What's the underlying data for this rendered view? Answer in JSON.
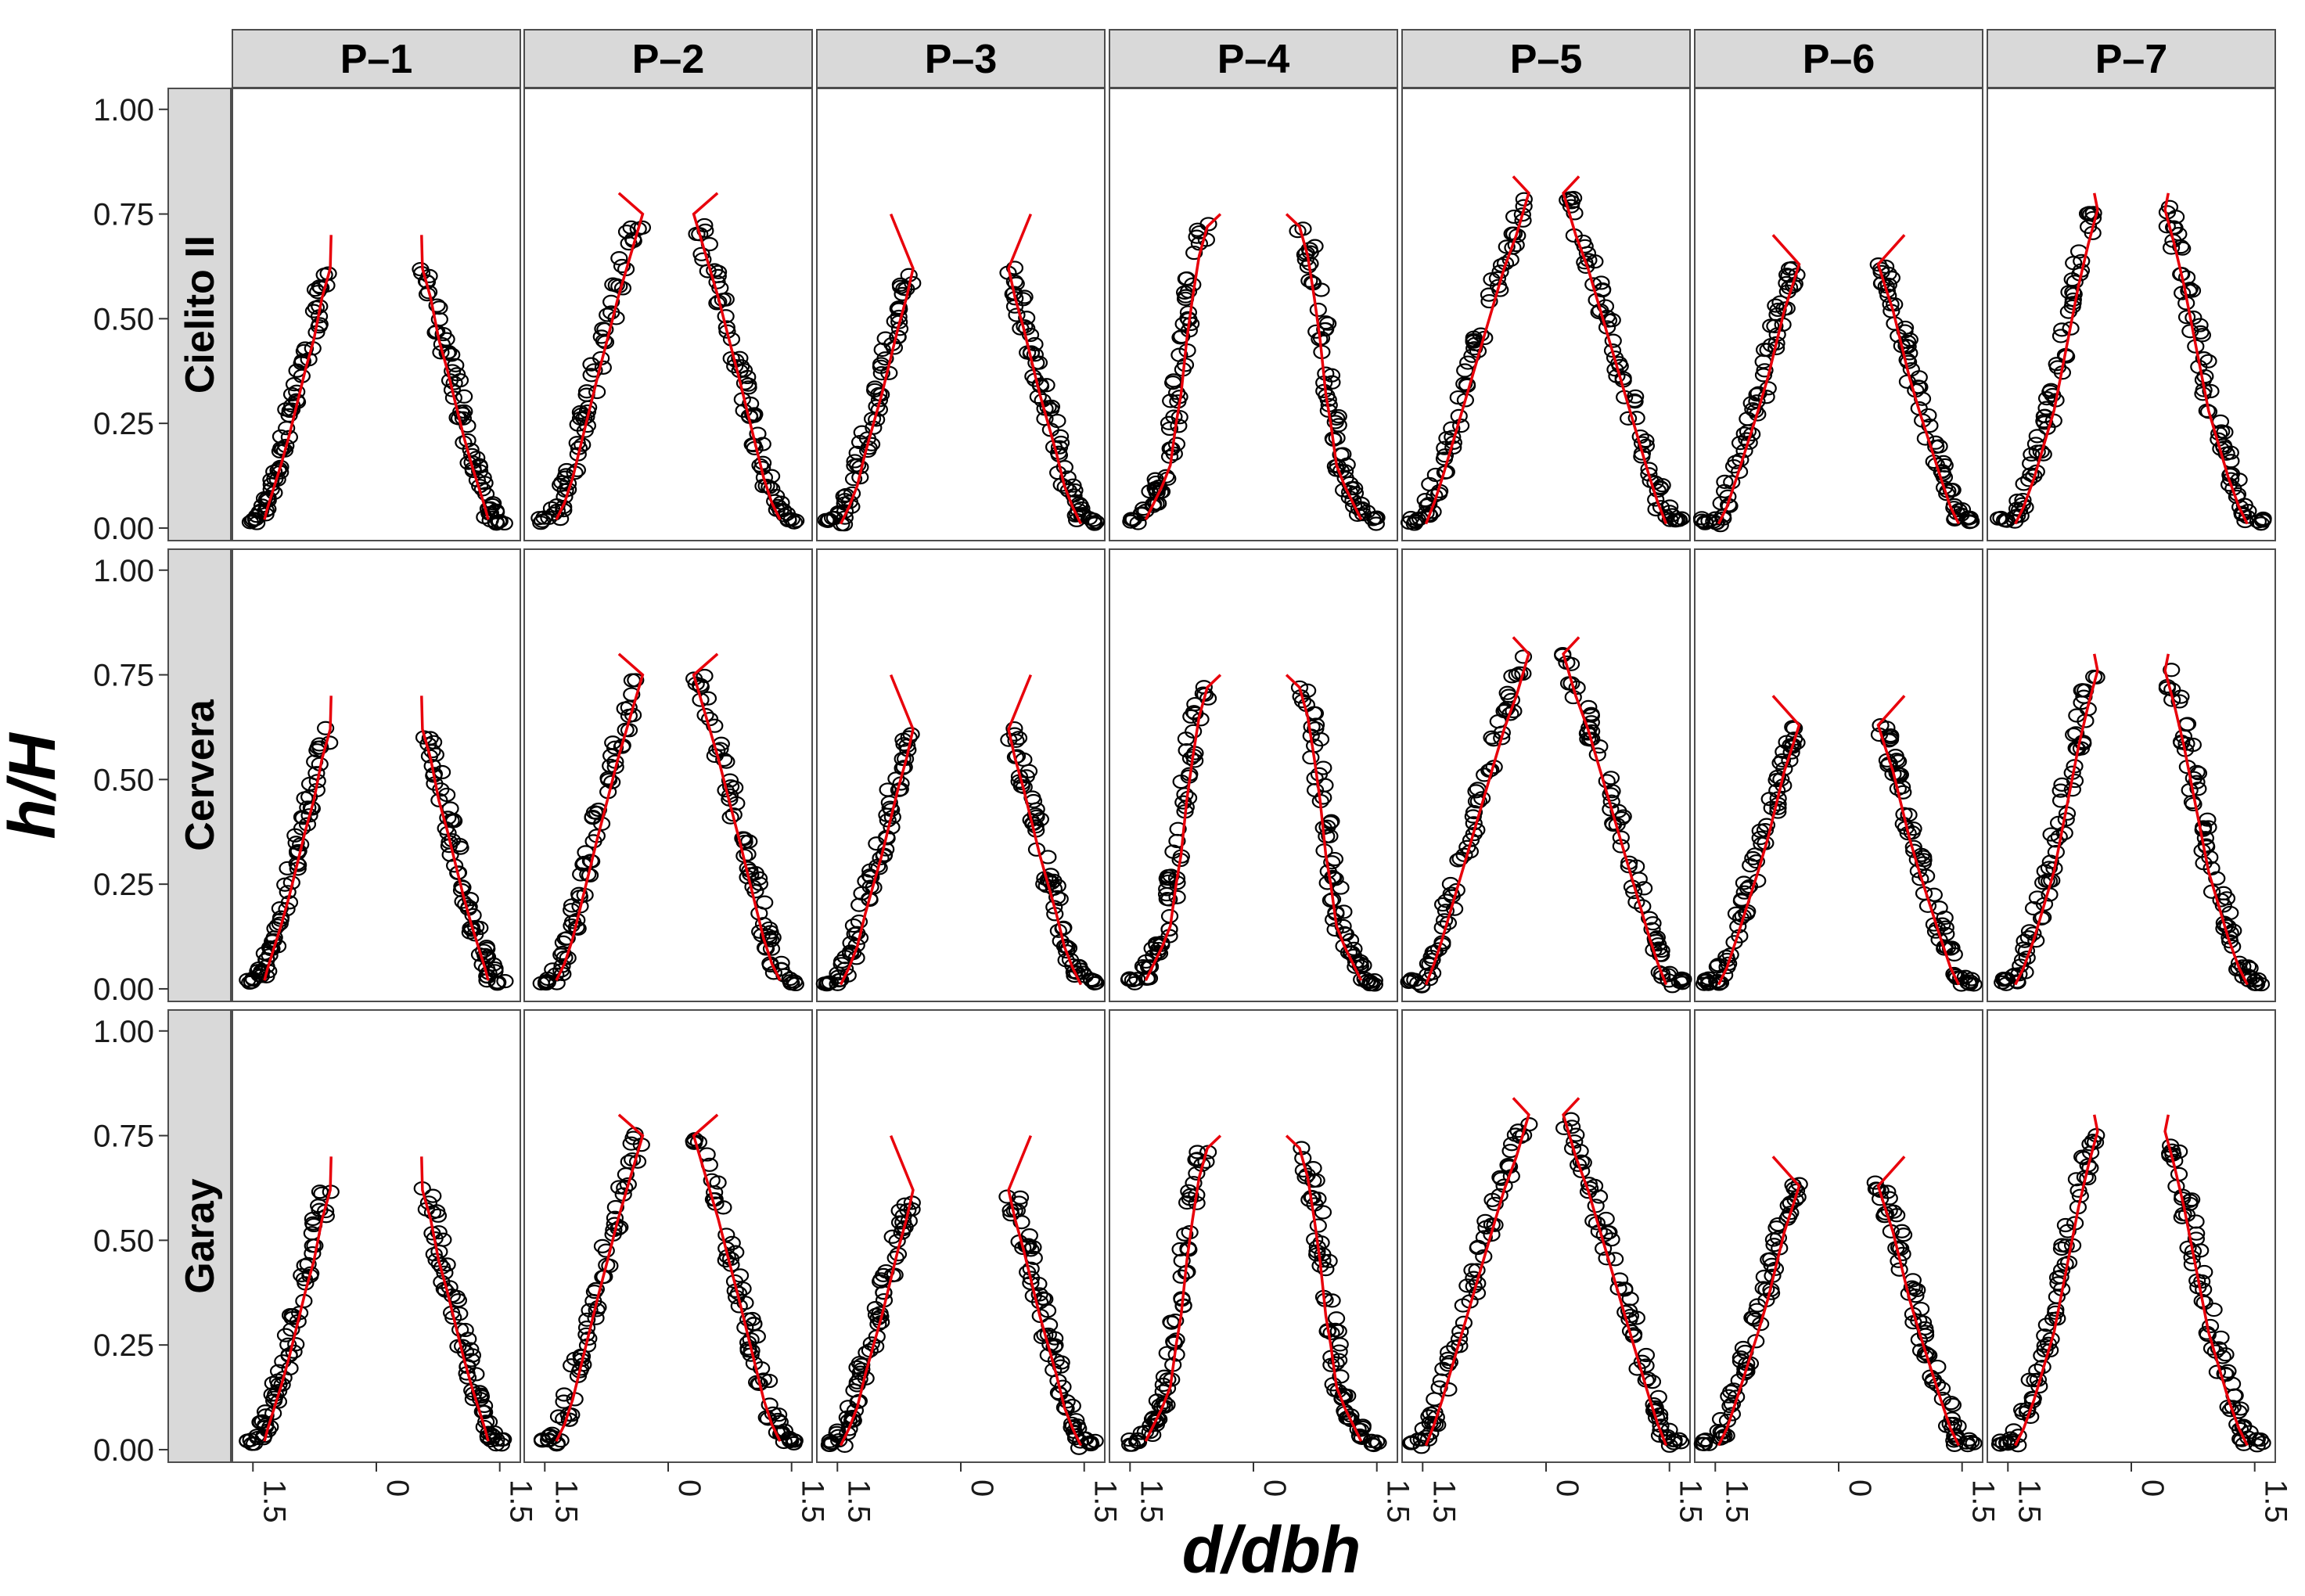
{
  "chart_data": {
    "type": "scatter",
    "layout": "facet-grid",
    "xlabel": "d/dbh",
    "ylabel": "h/H",
    "columns": [
      "P–1",
      "P–2",
      "P–3",
      "P–4",
      "P–5",
      "P–6",
      "P–7"
    ],
    "rows": [
      "Cielito II",
      "Cervera",
      "Garay"
    ],
    "x_ticks": [
      "1.5",
      "0",
      "1.5"
    ],
    "x_tick_values": [
      -1.5,
      0,
      1.5
    ],
    "y_ticks": [
      "0.00",
      "0.25",
      "0.50",
      "0.75",
      "1.00"
    ],
    "y_tick_values": [
      0,
      0.25,
      0.5,
      0.75,
      1.0
    ],
    "xlim": [
      -1.75,
      1.75
    ],
    "ylim": [
      -0.03,
      1.05
    ],
    "grid": false,
    "legend": "none",
    "point_style": "open circle, black",
    "fit_style": "red line",
    "colors": {
      "points": "#000000",
      "fit": "#e8000b",
      "strip_fill": "#d9d9d9",
      "panel_border": "#4d4d4d"
    },
    "series_note_values_are_profiles": true,
    "profiles": {
      "P–1": {
        "x": [
          1.4,
          1.36,
          1.28,
          1.2,
          1.1,
          1.0,
          0.9,
          0.8,
          0.7,
          0.6
        ],
        "y": [
          0.02,
          0.05,
          0.1,
          0.15,
          0.22,
          0.3,
          0.38,
          0.45,
          0.55,
          0.62
        ],
        "fit_top": 0.7,
        "fit_top_x": 0.55
      },
      "P–2": {
        "x": [
          1.4,
          1.3,
          1.2,
          1.1,
          1.0,
          0.9,
          0.78,
          0.65,
          0.5,
          0.35
        ],
        "y": [
          0.02,
          0.06,
          0.12,
          0.2,
          0.28,
          0.36,
          0.45,
          0.55,
          0.65,
          0.75
        ],
        "fit_top": 0.8,
        "fit_top_x": 0.6
      },
      "P–3": {
        "x": [
          1.5,
          1.4,
          1.3,
          1.2,
          1.1,
          1.0,
          0.9,
          0.8,
          0.7,
          0.62
        ],
        "y": [
          0.01,
          0.05,
          0.1,
          0.18,
          0.25,
          0.32,
          0.4,
          0.48,
          0.55,
          0.62
        ],
        "fit_top": 0.75,
        "fit_top_x": 0.85
      },
      "P–4": {
        "x": [
          1.35,
          1.25,
          1.15,
          1.05,
          0.98,
          0.92,
          0.85,
          0.78,
          0.7,
          0.6
        ],
        "y": [
          0.02,
          0.06,
          0.1,
          0.15,
          0.25,
          0.32,
          0.45,
          0.55,
          0.65,
          0.72
        ],
        "fit_top": 0.75,
        "fit_top_x": 0.4
      },
      "P–5": {
        "x": [
          1.5,
          1.4,
          1.3,
          1.15,
          1.0,
          0.85,
          0.7,
          0.55,
          0.4,
          0.25
        ],
        "y": [
          0.01,
          0.06,
          0.12,
          0.22,
          0.32,
          0.42,
          0.52,
          0.62,
          0.7,
          0.8
        ],
        "fit_top": 0.84,
        "fit_top_x": 0.4
      },
      "P–6": {
        "x": [
          1.5,
          1.4,
          1.28,
          1.15,
          1.02,
          0.9,
          0.8,
          0.7,
          0.6,
          0.52
        ],
        "y": [
          0.01,
          0.05,
          0.12,
          0.2,
          0.28,
          0.36,
          0.44,
          0.52,
          0.58,
          0.63
        ],
        "fit_top": 0.7,
        "fit_top_x": 0.8
      },
      "P–7": {
        "x": [
          1.45,
          1.35,
          1.22,
          1.1,
          0.98,
          0.88,
          0.78,
          0.68,
          0.56,
          0.45
        ],
        "y": [
          0.01,
          0.05,
          0.12,
          0.2,
          0.28,
          0.38,
          0.48,
          0.58,
          0.68,
          0.76
        ],
        "fit_top": 0.8,
        "fit_top_x": 0.45
      }
    }
  }
}
